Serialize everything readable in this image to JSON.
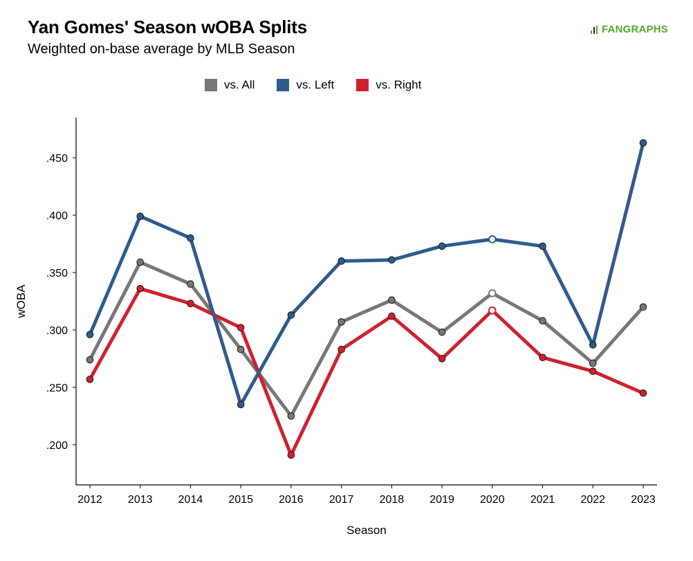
{
  "header": {
    "title": "Yan Gomes' Season wOBA Splits",
    "subtitle": "Weighted on-base average by MLB Season",
    "logo_text": "FANGRAPHS"
  },
  "colors": {
    "all": "#777777",
    "left": "#2f5b8c",
    "right": "#d0202e",
    "logo": "#55a630"
  },
  "chart_data": {
    "type": "line",
    "x": [
      2012,
      2013,
      2014,
      2015,
      2016,
      2017,
      2018,
      2019,
      2020,
      2021,
      2022,
      2023
    ],
    "x_tick_labels": [
      "2012",
      "2013",
      "2014",
      "2015",
      "2016",
      "2017",
      "2018",
      "2019",
      "2020",
      "2021",
      "2022",
      "2023"
    ],
    "y_ticks": [
      0.2,
      0.25,
      0.3,
      0.35,
      0.4,
      0.45
    ],
    "y_tick_labels": [
      ".200",
      ".250",
      ".300",
      ".350",
      ".400",
      ".450"
    ],
    "ylim": [
      0.165,
      0.485
    ],
    "xlabel": "Season",
    "ylabel": "wOBA",
    "legend_position": "top",
    "grid": false,
    "highlight_x": 2020,
    "series": [
      {
        "name": "vs. All",
        "color_key": "all",
        "values": [
          0.274,
          0.359,
          0.34,
          0.283,
          0.225,
          0.307,
          0.326,
          0.298,
          0.332,
          0.308,
          0.271,
          0.32
        ]
      },
      {
        "name": "vs. Left",
        "color_key": "left",
        "values": [
          0.296,
          0.399,
          0.38,
          0.235,
          0.313,
          0.36,
          0.361,
          0.373,
          0.379,
          0.373,
          0.287,
          0.463
        ]
      },
      {
        "name": "vs. Right",
        "color_key": "right",
        "values": [
          0.257,
          0.336,
          0.323,
          0.302,
          0.191,
          0.283,
          0.312,
          0.275,
          0.317,
          0.276,
          0.264,
          0.245
        ]
      }
    ]
  }
}
